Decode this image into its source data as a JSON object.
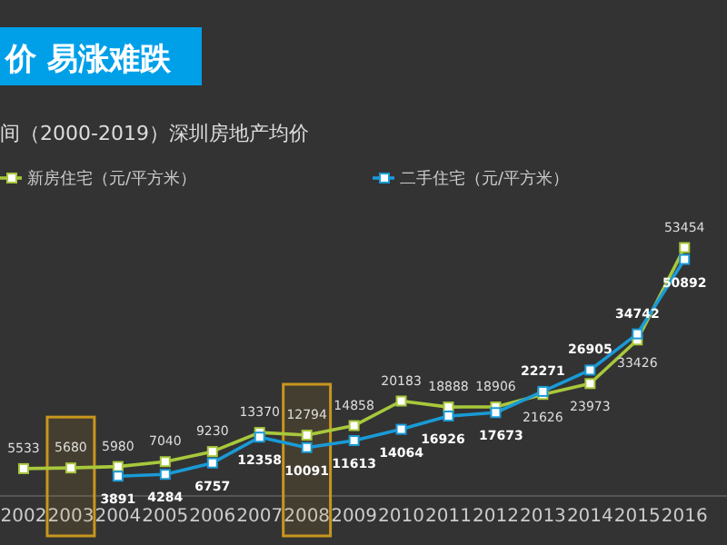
{
  "chart_data": {
    "type": "line",
    "title": "价  易涨难跌",
    "subtitle": "间（2000-2019）深圳房地产均价",
    "x": [
      2002,
      2003,
      2004,
      2005,
      2006,
      2007,
      2008,
      2009,
      2010,
      2011,
      2012,
      2013,
      2014,
      2015,
      2016
    ],
    "xlim": [
      2001.5,
      2016.9
    ],
    "xticks": [
      2002,
      2003,
      2004,
      2005,
      2006,
      2007,
      2008,
      2009,
      2010,
      2011,
      2012,
      2013,
      2014,
      2015,
      2016
    ],
    "series": [
      {
        "name": "新房住宅（元/平方米）",
        "color": "#a8c83c",
        "values": [
          5533,
          5680,
          5980,
          7040,
          9230,
          13370,
          12794,
          14858,
          20183,
          18888,
          18906,
          21626,
          23973,
          33426,
          53454
        ]
      },
      {
        "name": "二手住宅（元/平方米）",
        "color": "#1a9ad6",
        "values": [
          null,
          null,
          3891,
          4284,
          6757,
          12358,
          10091,
          11613,
          14064,
          16926,
          17673,
          22271,
          26905,
          34742,
          50892
        ]
      }
    ],
    "marker": "square",
    "data_labels": true,
    "legend": "top",
    "bands": [
      {
        "axis": "x",
        "from": 2002.5,
        "to": 2003.5,
        "color": "#c8961e"
      },
      {
        "axis": "x",
        "from": 2007.5,
        "to": 2008.5,
        "color": "#c8961e"
      }
    ]
  }
}
